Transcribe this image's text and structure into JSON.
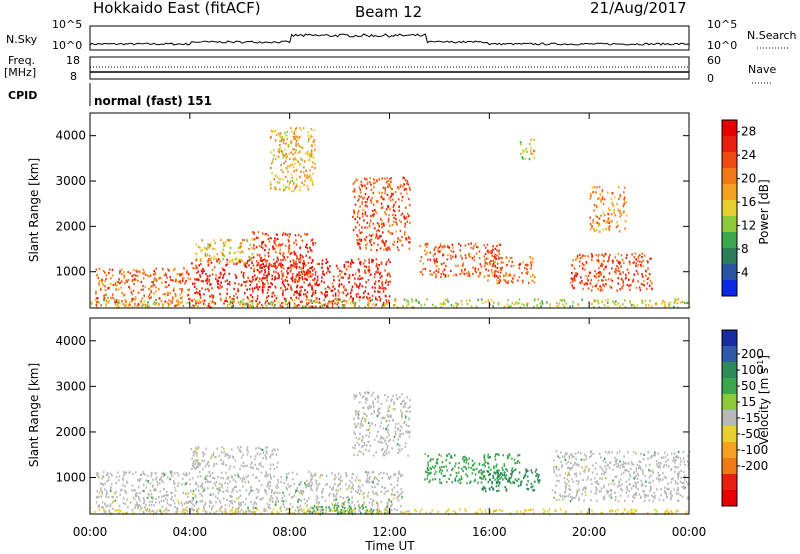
{
  "header": {
    "station": "Hokkaido East (fitACF)",
    "beam": "Beam 12",
    "date": "21/Aug/2017"
  },
  "top_panels": {
    "nsky_label": "N.Sky",
    "nsky_ticks": [
      "10^5",
      "10^0"
    ],
    "nsearch_label": "N.Search",
    "nsearch_ticks": [
      "10^5",
      "10^0"
    ],
    "freq_label": "Freq.",
    "freq_unit": "[MHz]",
    "freq_ticks": [
      "18",
      "8"
    ],
    "nave_label": "Nave",
    "nave_ticks": [
      "60",
      "0"
    ],
    "cpid_label": "CPID",
    "cpid_value": "normal (fast) 151"
  },
  "x_axis": {
    "ticks": [
      "00:00",
      "04:00",
      "08:00",
      "12:00",
      "16:00",
      "20:00",
      "00:00"
    ],
    "label": "Time UT"
  },
  "chart_data": [
    {
      "type": "heatmap",
      "name": "power",
      "ylabel": "Slant Range [km]",
      "yticks": [
        1000,
        2000,
        3000,
        4000
      ],
      "ylim": [
        200,
        4500
      ],
      "xlim_hours": [
        0,
        24
      ],
      "colorbar_label": "Power [dB]",
      "colorbar_ticks": [
        4,
        8,
        12,
        16,
        20,
        24,
        28
      ],
      "colorbar_colors": [
        "#0a28e6",
        "#2a55a0",
        "#2e7d5a",
        "#3aa84a",
        "#8ecb3a",
        "#e8d030",
        "#f5a020",
        "#f07a18",
        "#ee4a14",
        "#e81e10",
        "#e60000"
      ],
      "regions": [
        {
          "t0": 0.2,
          "t1": 4.0,
          "r0": 250,
          "r1": 1100,
          "level": 22
        },
        {
          "t0": 4.0,
          "t1": 12.0,
          "r0": 250,
          "r1": 1300,
          "level": 27
        },
        {
          "t0": 6.5,
          "t1": 9.0,
          "r0": 800,
          "r1": 1900,
          "level": 25
        },
        {
          "t0": 10.5,
          "t1": 12.8,
          "r0": 1500,
          "r1": 3100,
          "level": 24
        },
        {
          "t0": 13.2,
          "t1": 16.5,
          "r0": 900,
          "r1": 1650,
          "level": 24
        },
        {
          "t0": 15.8,
          "t1": 17.8,
          "r0": 750,
          "r1": 1350,
          "level": 22
        },
        {
          "t0": 19.2,
          "t1": 22.5,
          "r0": 600,
          "r1": 1450,
          "level": 24
        },
        {
          "t0": 20.0,
          "t1": 21.5,
          "r0": 1900,
          "r1": 2900,
          "level": 20
        },
        {
          "t0": 4.2,
          "t1": 6.5,
          "r0": 1200,
          "r1": 1750,
          "level": 16
        },
        {
          "t0": 0.0,
          "t1": 24.0,
          "r0": 230,
          "r1": 420,
          "level": 14
        },
        {
          "t0": 7.2,
          "t1": 9.0,
          "r0": 2800,
          "r1": 4200,
          "level": 17
        },
        {
          "t0": 17.2,
          "t1": 17.8,
          "r0": 3500,
          "r1": 3950,
          "level": 14
        }
      ]
    },
    {
      "type": "heatmap",
      "name": "velocity",
      "ylabel": "Slant Range [km]",
      "yticks": [
        1000,
        2000,
        3000,
        4000
      ],
      "ylim": [
        200,
        4500
      ],
      "xlim_hours": [
        0,
        24
      ],
      "colorbar_label": "Velocity [m s^-1]",
      "colorbar_ticks": [
        200,
        100,
        50,
        15,
        -15,
        -50,
        -100,
        -200
      ],
      "colorbar_colors": [
        "#1a2aa0",
        "#2e5aa8",
        "#2f8a5a",
        "#3aa84a",
        "#8ecb3a",
        "#b8b8b8",
        "#e8d030",
        "#f5a020",
        "#f07a18",
        "#e81e10",
        "#e60000"
      ],
      "regions": [
        {
          "t0": 0.2,
          "t1": 12.5,
          "r0": 250,
          "r1": 1150,
          "level": 0
        },
        {
          "t0": 4.0,
          "t1": 7.5,
          "r0": 1200,
          "r1": 1700,
          "level": 0
        },
        {
          "t0": 10.5,
          "t1": 12.8,
          "r0": 1500,
          "r1": 2900,
          "level": 0
        },
        {
          "t0": 13.3,
          "t1": 17.2,
          "r0": 900,
          "r1": 1550,
          "level": 40
        },
        {
          "t0": 15.5,
          "t1": 18.0,
          "r0": 700,
          "r1": 1200,
          "level": 60
        },
        {
          "t0": 18.5,
          "t1": 24.0,
          "r0": 500,
          "r1": 1600,
          "level": 0
        },
        {
          "t0": 8.5,
          "t1": 12.0,
          "r0": 220,
          "r1": 420,
          "level": 30
        },
        {
          "t0": 0.0,
          "t1": 24.0,
          "r0": 220,
          "r1": 330,
          "level": -40
        }
      ]
    }
  ]
}
